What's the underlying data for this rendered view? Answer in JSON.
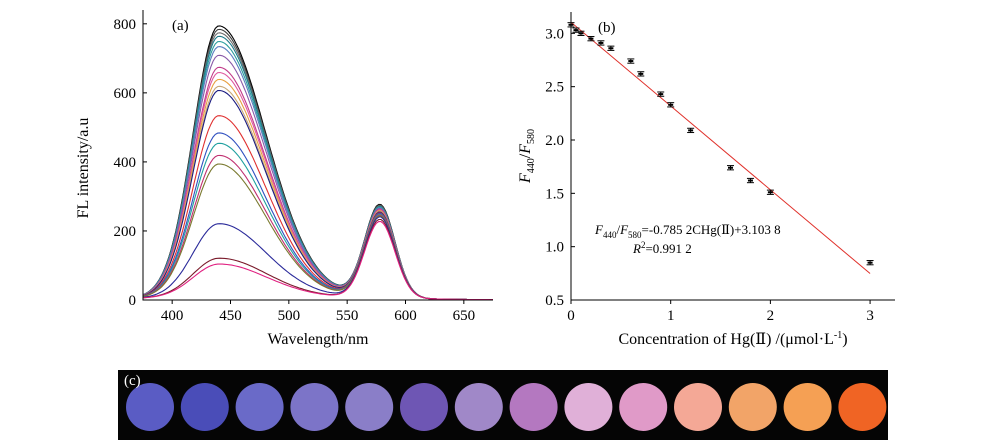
{
  "panel_a_label": "(a)",
  "panel_b_label": "(b)",
  "panel_c_label": "(c)",
  "colors": {
    "fit_line": "#e0302a",
    "strip_background": "#050505",
    "spectra": [
      "#000000",
      "#3a3a3a",
      "#6d6d6d",
      "#1d7a8a",
      "#2a9d9d",
      "#5a7fc0",
      "#8a5aa8",
      "#c23a8a",
      "#e05aa0",
      "#e8a040",
      "#c8a878",
      "#1a1a80",
      "#e03030",
      "#3050c0",
      "#20a0a0",
      "#c03070",
      "#7a7a30",
      "#2a2a9a",
      "#7a1a2a",
      "#e02080"
    ]
  },
  "chart_data": [
    {
      "type": "line",
      "xlabel": "Wavelength/nm",
      "ylabel": "FL intensity/a.u",
      "xlim": [
        375,
        675
      ],
      "ylim": [
        0,
        840
      ],
      "xticks": [
        400,
        450,
        500,
        550,
        600,
        650
      ],
      "yticks": [
        0,
        200,
        400,
        600,
        800
      ],
      "peak1_center": 440,
      "peak2_center": 578,
      "x": [
        375,
        390,
        400,
        410,
        420,
        430,
        440,
        450,
        460,
        470,
        480,
        490,
        500,
        510,
        520,
        530,
        540,
        550,
        560,
        570,
        578,
        585,
        590,
        600,
        610,
        620,
        630,
        640,
        650,
        660,
        675
      ],
      "series": [
        {
          "peak1": 785,
          "peak2": 270
        },
        {
          "peak1": 775,
          "peak2": 268
        },
        {
          "peak1": 765,
          "peak2": 266
        },
        {
          "peak1": 755,
          "peak2": 264
        },
        {
          "peak1": 740,
          "peak2": 262
        },
        {
          "peak1": 725,
          "peak2": 260
        },
        {
          "peak1": 700,
          "peak2": 258
        },
        {
          "peak1": 665,
          "peak2": 256
        },
        {
          "peak1": 650,
          "peak2": 254
        },
        {
          "peak1": 630,
          "peak2": 252
        },
        {
          "peak1": 610,
          "peak2": 250
        },
        {
          "peak1": 598,
          "peak2": 248
        },
        {
          "peak1": 525,
          "peak2": 246
        },
        {
          "peak1": 475,
          "peak2": 244
        },
        {
          "peak1": 445,
          "peak2": 242
        },
        {
          "peak1": 410,
          "peak2": 240
        },
        {
          "peak1": 385,
          "peak2": 238
        },
        {
          "peak1": 212,
          "peak2": 235
        },
        {
          "peak1": 112,
          "peak2": 228
        },
        {
          "peak1": 95,
          "peak2": 222
        }
      ]
    },
    {
      "type": "scatter",
      "xlabel": "Concentration of Hg(Ⅱ) /(μmol·L",
      "xlabel_sup": "-1",
      "xlabel_end": ")",
      "ylabel_main": "F",
      "ylabel_sub1": "440",
      "ylabel_slash": "/",
      "ylabel_sub2": "580",
      "xlim": [
        0,
        3.25
      ],
      "ylim": [
        0.5,
        3.2
      ],
      "xticks": [
        0,
        1,
        2,
        3
      ],
      "yticks": [
        0.5,
        1.0,
        1.5,
        2.0,
        2.5,
        3.0
      ],
      "ytick_labels": [
        "0.5",
        "1.0",
        "1.5",
        "2.0",
        "2.5",
        "3.0"
      ],
      "x": [
        0,
        0.05,
        0.1,
        0.2,
        0.3,
        0.4,
        0.6,
        0.7,
        0.9,
        1.0,
        1.2,
        1.6,
        1.8,
        2.0,
        3.0
      ],
      "y": [
        3.08,
        3.03,
        3.0,
        2.95,
        2.91,
        2.86,
        2.74,
        2.62,
        2.43,
        2.33,
        2.09,
        1.74,
        1.62,
        1.51,
        0.85
      ],
      "error": 0.02,
      "fit": {
        "slope": -0.7852,
        "intercept": 3.1038,
        "x_range": [
          0,
          3.0
        ]
      },
      "equation_text": "F440/F580=-0.785 2CHg(Ⅱ)+3.103 8",
      "equation_parts": {
        "a": "F",
        "a_sub": "440",
        "slash": "/",
        "b": "F",
        "b_sub": "580",
        "rest": "=-0.785 2CHg(Ⅱ)+3.103 8"
      },
      "r2_parts": {
        "r": "R",
        "sup": "2",
        "rest": "=0.991 2"
      }
    }
  ],
  "panel_c": {
    "sample_colors": [
      "#5a5cc4",
      "#4a4db8",
      "#6a6ac8",
      "#7c74c8",
      "#8a7ec8",
      "#6e56b4",
      "#a088c8",
      "#b478c0",
      "#e0b0d8",
      "#e09ac8",
      "#f4a896",
      "#f2a468",
      "#f5a054",
      "#f06424"
    ]
  }
}
